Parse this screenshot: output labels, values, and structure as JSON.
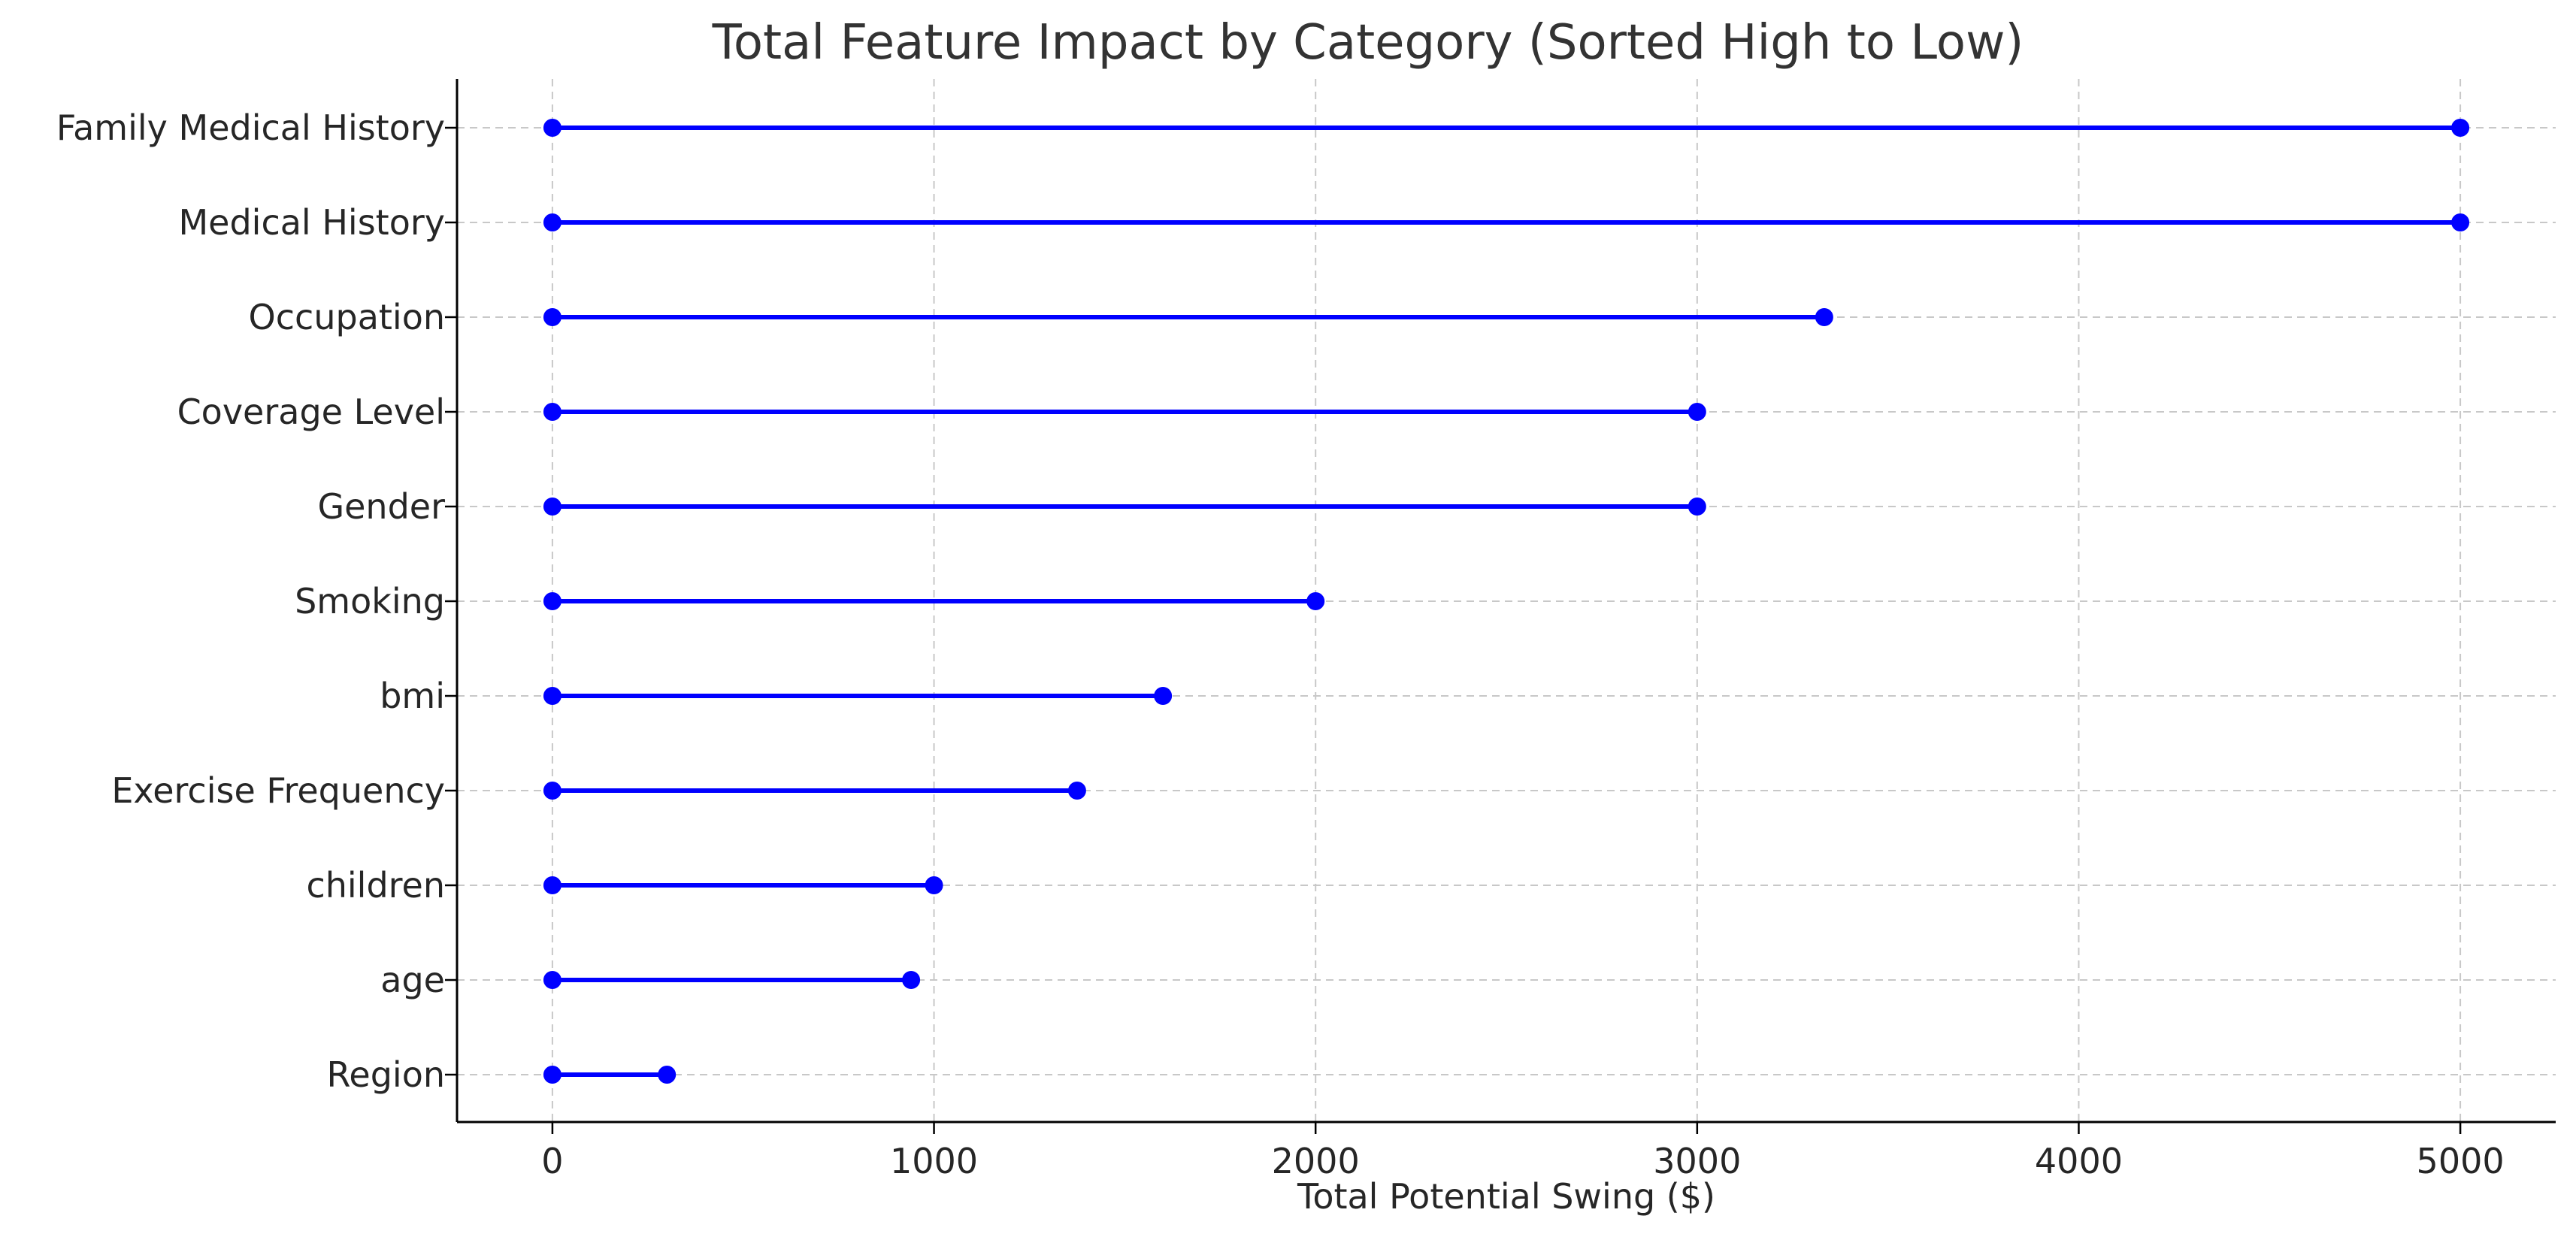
{
  "chart_data": {
    "type": "lollipop",
    "title": "Total Feature Impact by Category (Sorted High to Low)",
    "xlabel": "Total Potential Swing ($)",
    "ylabel": "",
    "xlim": [
      -250,
      5250
    ],
    "xticks": [
      0,
      1000,
      2000,
      3000,
      4000,
      5000
    ],
    "grid": true,
    "color": "#0000ff",
    "categories": [
      "Family Medical History",
      "Medical History",
      "Occupation",
      "Coverage Level",
      "Gender",
      "Smoking",
      "bmi",
      "Exercise Frequency",
      "children",
      "age",
      "Region"
    ],
    "start_values": [
      0,
      0,
      0,
      0,
      0,
      0,
      0,
      0,
      0,
      0,
      0
    ],
    "values": [
      5000,
      5000,
      3333,
      3000,
      3000,
      2000,
      1600,
      1375,
      1000,
      940,
      300
    ]
  }
}
